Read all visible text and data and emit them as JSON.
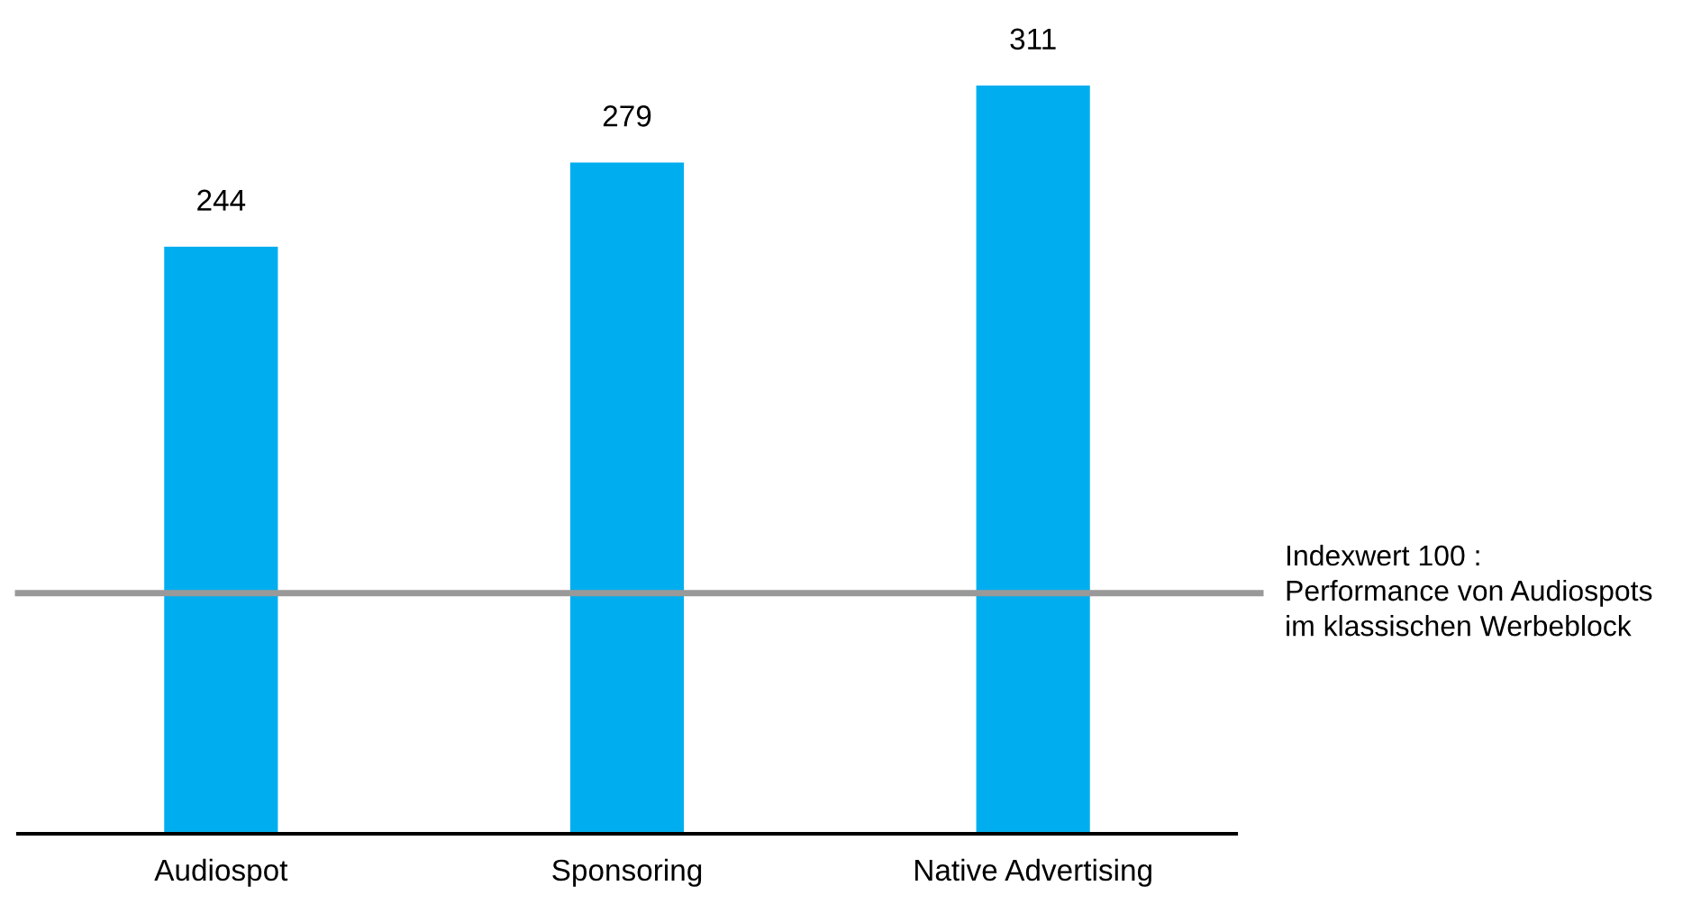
{
  "chart_data": {
    "type": "bar",
    "categories": [
      "Audiospot",
      "Sponsoring",
      "Native Advertising"
    ],
    "values": [
      244,
      279,
      311
    ],
    "color": "#00aeef",
    "data_labels": true,
    "ref_lines": [
      {
        "axis": "y",
        "value": 100,
        "label": "Indexwert 100 :\nPerformance von Audiospots\nim klassischen Werbeblock",
        "color": "#999999"
      }
    ],
    "grid": false,
    "legend": false
  }
}
